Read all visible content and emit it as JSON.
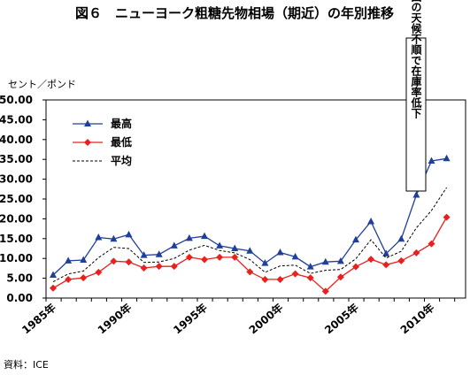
{
  "chart_data": {
    "type": "line",
    "title": "図６　ニューヨーク粗糖先物相場（期近）の年別推移",
    "y_unit_label": "セント／ポンド",
    "ylim": [
      0,
      50
    ],
    "y_ticks": [
      "0.00",
      "5.00",
      "10.00",
      "15.00",
      "20.00",
      "25.00",
      "30.00",
      "35.00",
      "40.00",
      "45.00",
      "50.00"
    ],
    "x": [
      1985,
      1986,
      1987,
      1988,
      1989,
      1990,
      1991,
      1992,
      1993,
      1994,
      1995,
      1996,
      1997,
      1998,
      1999,
      2000,
      2001,
      2002,
      2003,
      2004,
      2005,
      2006,
      2007,
      2008,
      2009,
      2010,
      2011
    ],
    "x_tick_labels": [
      {
        "x": 1985,
        "label": "1985年"
      },
      {
        "x": 1990,
        "label": "1990年"
      },
      {
        "x": 1995,
        "label": "1995年"
      },
      {
        "x": 2000,
        "label": "2000年"
      },
      {
        "x": 2005,
        "label": "2005年"
      },
      {
        "x": 2010,
        "label": "2010年"
      }
    ],
    "series": [
      {
        "name": "最高",
        "color": "#1f3f9a",
        "marker": "triangle",
        "line": "solid",
        "values": [
          5.8,
          9.4,
          9.6,
          15.3,
          14.9,
          16.0,
          10.8,
          11.0,
          13.2,
          15.1,
          15.6,
          13.2,
          12.5,
          11.9,
          8.8,
          11.5,
          10.4,
          7.9,
          9.1,
          9.3,
          14.7,
          19.3,
          11.2,
          14.9,
          26.0,
          34.6,
          35.2
        ]
      },
      {
        "name": "最低",
        "color": "#e8201e",
        "marker": "diamond",
        "line": "solid",
        "values": [
          2.5,
          4.7,
          5.1,
          6.5,
          9.3,
          9.1,
          7.6,
          8.0,
          8.0,
          10.3,
          9.7,
          10.3,
          10.3,
          6.6,
          4.7,
          4.7,
          6.1,
          5.1,
          1.7,
          5.3,
          7.9,
          9.8,
          8.4,
          9.4,
          11.4,
          13.7,
          20.4
        ]
      },
      {
        "name": "平均",
        "color": "#000000",
        "marker": "none",
        "line": "dashed",
        "values": [
          4.1,
          6.1,
          6.8,
          10.2,
          12.8,
          12.5,
          9.0,
          9.1,
          10.0,
          12.1,
          13.3,
          12.0,
          11.4,
          9.7,
          6.5,
          8.1,
          8.3,
          6.2,
          7.0,
          7.2,
          9.9,
          14.7,
          10.1,
          11.8,
          17.7,
          22.1,
          27.9
        ]
      }
    ],
    "legend_placement": "top-left",
    "grid": false,
    "annotation": {
      "text": "各国の天候不順で在庫率低下",
      "x": 2009
    },
    "source": "資料：ICE"
  }
}
